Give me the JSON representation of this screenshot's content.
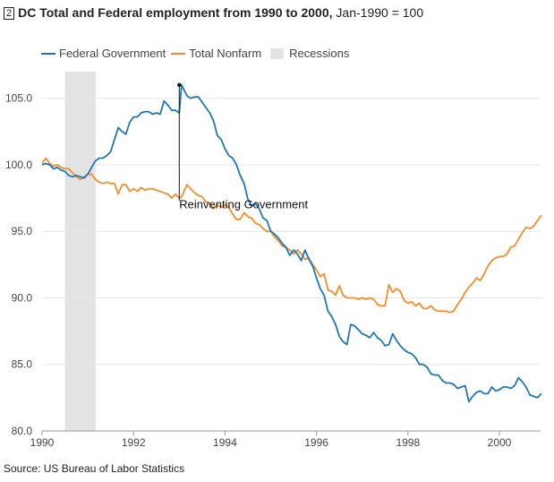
{
  "title": {
    "number": "2",
    "main": "DC Total and Federal employment from 1990 to 2000,",
    "suffix": "Jan-1990 = 100"
  },
  "source": "Source: US Bureau of Labor Statistics",
  "colors": {
    "federal": "#1f77b4",
    "nonfarm": "#f28e2b",
    "recession": "#e3e3e3",
    "grid": "#e6e6e6"
  },
  "chart_data": {
    "type": "line",
    "xlim": [
      1990,
      2000.9
    ],
    "ylim": [
      80,
      107
    ],
    "yticks": [
      80.0,
      85.0,
      90.0,
      95.0,
      100.0,
      105.0
    ],
    "ytick_labels": [
      "80.0",
      "85.0",
      "90.0",
      "95.0",
      "100.0",
      "105.0"
    ],
    "xticks": [
      1990,
      1992,
      1994,
      1996,
      1998,
      2000
    ],
    "xtick_labels": [
      "1990",
      "1992",
      "1994",
      "1996",
      "1998",
      "2000"
    ],
    "grid": true,
    "legend": {
      "placement": "top-left",
      "items": [
        "Federal Government",
        "Total Nonfarm",
        "Recessions"
      ]
    },
    "recessions": [
      [
        1990.5,
        1991.17
      ]
    ],
    "annotation": {
      "text": "Reinventing Government",
      "x": 1993.0,
      "y": 106.0
    },
    "series": [
      {
        "name": "Federal Government",
        "points": [
          [
            1990.0,
            100.0
          ],
          [
            1990.083,
            100.1
          ],
          [
            1990.167,
            100.0
          ],
          [
            1990.25,
            99.7
          ],
          [
            1990.333,
            99.8
          ],
          [
            1990.417,
            99.6
          ],
          [
            1990.5,
            99.5
          ],
          [
            1990.583,
            99.2
          ],
          [
            1990.667,
            99.1
          ],
          [
            1990.75,
            99.2
          ],
          [
            1990.833,
            99.1
          ],
          [
            1990.917,
            99.0
          ],
          [
            1991.0,
            99.3
          ],
          [
            1991.083,
            99.8
          ],
          [
            1991.167,
            100.3
          ],
          [
            1991.25,
            100.5
          ],
          [
            1991.333,
            100.5
          ],
          [
            1991.417,
            100.7
          ],
          [
            1991.5,
            101.0
          ],
          [
            1991.583,
            101.9
          ],
          [
            1991.667,
            102.8
          ],
          [
            1991.75,
            102.5
          ],
          [
            1991.833,
            102.3
          ],
          [
            1991.917,
            103.2
          ],
          [
            1992.0,
            103.6
          ],
          [
            1992.083,
            103.6
          ],
          [
            1992.167,
            103.9
          ],
          [
            1992.25,
            104.0
          ],
          [
            1992.333,
            104.0
          ],
          [
            1992.417,
            103.8
          ],
          [
            1992.5,
            103.9
          ],
          [
            1992.583,
            103.8
          ],
          [
            1992.667,
            104.8
          ],
          [
            1992.75,
            104.5
          ],
          [
            1992.833,
            104.1
          ],
          [
            1992.917,
            104.1
          ],
          [
            1993.0,
            103.9
          ],
          [
            1993.05,
            106.0
          ],
          [
            1993.167,
            105.2
          ],
          [
            1993.25,
            105.0
          ],
          [
            1993.333,
            105.1
          ],
          [
            1993.417,
            105.1
          ],
          [
            1993.5,
            104.7
          ],
          [
            1993.583,
            104.3
          ],
          [
            1993.667,
            103.9
          ],
          [
            1993.75,
            103.3
          ],
          [
            1993.833,
            102.2
          ],
          [
            1993.917,
            101.9
          ],
          [
            1994.0,
            101.2
          ],
          [
            1994.083,
            100.7
          ],
          [
            1994.167,
            100.5
          ],
          [
            1994.25,
            100.0
          ],
          [
            1994.333,
            99.2
          ],
          [
            1994.417,
            98.6
          ],
          [
            1994.5,
            97.4
          ],
          [
            1994.583,
            96.9
          ],
          [
            1994.667,
            97.1
          ],
          [
            1994.75,
            96.7
          ],
          [
            1994.833,
            96.0
          ],
          [
            1994.917,
            95.8
          ],
          [
            1995.0,
            95.0
          ],
          [
            1995.083,
            94.8
          ],
          [
            1995.167,
            94.5
          ],
          [
            1995.25,
            94.1
          ],
          [
            1995.333,
            93.8
          ],
          [
            1995.417,
            93.2
          ],
          [
            1995.5,
            93.6
          ],
          [
            1995.583,
            93.3
          ],
          [
            1995.667,
            92.8
          ],
          [
            1995.75,
            93.6
          ],
          [
            1995.833,
            92.9
          ],
          [
            1995.917,
            92.4
          ],
          [
            1996.0,
            91.5
          ],
          [
            1996.083,
            90.7
          ],
          [
            1996.167,
            90.2
          ],
          [
            1996.25,
            89.0
          ],
          [
            1996.333,
            88.6
          ],
          [
            1996.417,
            88.0
          ],
          [
            1996.5,
            87.1
          ],
          [
            1996.583,
            86.7
          ],
          [
            1996.667,
            86.5
          ],
          [
            1996.75,
            88.0
          ],
          [
            1996.833,
            87.9
          ],
          [
            1996.917,
            87.6
          ],
          [
            1997.0,
            87.3
          ],
          [
            1997.083,
            87.2
          ],
          [
            1997.167,
            87.0
          ],
          [
            1997.25,
            87.4
          ],
          [
            1997.333,
            87.0
          ],
          [
            1997.417,
            86.8
          ],
          [
            1997.5,
            86.4
          ],
          [
            1997.583,
            86.5
          ],
          [
            1997.667,
            87.3
          ],
          [
            1997.75,
            86.8
          ],
          [
            1997.833,
            86.4
          ],
          [
            1997.917,
            86.1
          ],
          [
            1998.0,
            85.9
          ],
          [
            1998.083,
            85.8
          ],
          [
            1998.167,
            85.5
          ],
          [
            1998.25,
            85.0
          ],
          [
            1998.333,
            85.0
          ],
          [
            1998.417,
            84.8
          ],
          [
            1998.5,
            84.3
          ],
          [
            1998.583,
            84.2
          ],
          [
            1998.667,
            84.2
          ],
          [
            1998.75,
            83.8
          ],
          [
            1998.833,
            83.6
          ],
          [
            1998.917,
            83.6
          ],
          [
            1999.0,
            83.5
          ],
          [
            1999.083,
            83.2
          ],
          [
            1999.167,
            83.3
          ],
          [
            1999.25,
            83.4
          ],
          [
            1999.333,
            82.2
          ],
          [
            1999.417,
            82.6
          ],
          [
            1999.5,
            82.9
          ],
          [
            1999.583,
            83.0
          ],
          [
            1999.667,
            82.8
          ],
          [
            1999.75,
            82.8
          ],
          [
            1999.833,
            83.3
          ],
          [
            1999.917,
            83.0
          ],
          [
            2000.0,
            83.1
          ],
          [
            2000.083,
            83.3
          ],
          [
            2000.167,
            83.3
          ],
          [
            2000.25,
            83.2
          ],
          [
            2000.333,
            83.4
          ],
          [
            2000.417,
            84.0
          ],
          [
            2000.5,
            83.7
          ],
          [
            2000.583,
            83.3
          ],
          [
            2000.667,
            82.7
          ],
          [
            2000.75,
            82.6
          ],
          [
            2000.833,
            82.5
          ],
          [
            2000.917,
            82.8
          ]
        ]
      },
      {
        "name": "Total Nonfarm",
        "points": [
          [
            1990.0,
            100.1
          ],
          [
            1990.083,
            100.5
          ],
          [
            1990.167,
            100.1
          ],
          [
            1990.25,
            99.9
          ],
          [
            1990.333,
            100.0
          ],
          [
            1990.417,
            99.8
          ],
          [
            1990.5,
            99.7
          ],
          [
            1990.583,
            99.7
          ],
          [
            1990.667,
            99.4
          ],
          [
            1990.75,
            99.1
          ],
          [
            1990.833,
            98.9
          ],
          [
            1990.917,
            99.1
          ],
          [
            1991.0,
            99.3
          ],
          [
            1991.083,
            99.3
          ],
          [
            1991.167,
            98.9
          ],
          [
            1991.25,
            98.7
          ],
          [
            1991.333,
            98.6
          ],
          [
            1991.417,
            98.7
          ],
          [
            1991.5,
            98.6
          ],
          [
            1991.583,
            98.6
          ],
          [
            1991.667,
            97.8
          ],
          [
            1991.75,
            98.5
          ],
          [
            1991.833,
            98.5
          ],
          [
            1991.917,
            98.0
          ],
          [
            1992.0,
            98.2
          ],
          [
            1992.083,
            98.0
          ],
          [
            1992.167,
            98.3
          ],
          [
            1992.25,
            98.1
          ],
          [
            1992.333,
            98.2
          ],
          [
            1992.417,
            98.2
          ],
          [
            1992.5,
            98.1
          ],
          [
            1992.583,
            98.0
          ],
          [
            1992.667,
            97.9
          ],
          [
            1992.75,
            97.8
          ],
          [
            1992.833,
            97.5
          ],
          [
            1992.917,
            97.8
          ],
          [
            1993.0,
            97.5
          ],
          [
            1993.05,
            97.6
          ],
          [
            1993.167,
            98.5
          ],
          [
            1993.25,
            98.2
          ],
          [
            1993.333,
            97.9
          ],
          [
            1993.417,
            97.7
          ],
          [
            1993.5,
            97.6
          ],
          [
            1993.583,
            97.2
          ],
          [
            1993.667,
            97.1
          ],
          [
            1993.75,
            96.7
          ],
          [
            1993.833,
            97.0
          ],
          [
            1993.917,
            96.8
          ],
          [
            1994.0,
            97.0
          ],
          [
            1994.083,
            96.8
          ],
          [
            1994.167,
            96.3
          ],
          [
            1994.25,
            95.9
          ],
          [
            1994.333,
            95.9
          ],
          [
            1994.417,
            96.4
          ],
          [
            1994.5,
            96.1
          ],
          [
            1994.583,
            96.0
          ],
          [
            1994.667,
            95.6
          ],
          [
            1994.75,
            95.5
          ],
          [
            1994.833,
            95.2
          ],
          [
            1994.917,
            95.0
          ],
          [
            1995.0,
            95.0
          ],
          [
            1995.083,
            94.6
          ],
          [
            1995.167,
            94.3
          ],
          [
            1995.25,
            93.9
          ],
          [
            1995.333,
            93.8
          ],
          [
            1995.417,
            93.6
          ],
          [
            1995.5,
            93.3
          ],
          [
            1995.583,
            93.6
          ],
          [
            1995.667,
            93.3
          ],
          [
            1995.75,
            92.9
          ],
          [
            1995.833,
            93.0
          ],
          [
            1995.917,
            92.5
          ],
          [
            1996.0,
            92.1
          ],
          [
            1996.083,
            91.6
          ],
          [
            1996.167,
            91.8
          ],
          [
            1996.25,
            90.6
          ],
          [
            1996.333,
            90.5
          ],
          [
            1996.417,
            90.2
          ],
          [
            1996.5,
            90.9
          ],
          [
            1996.583,
            90.2
          ],
          [
            1996.667,
            90.0
          ],
          [
            1996.75,
            90.0
          ],
          [
            1996.833,
            90.0
          ],
          [
            1996.917,
            89.9
          ],
          [
            1997.0,
            90.0
          ],
          [
            1997.083,
            89.9
          ],
          [
            1997.167,
            90.0
          ],
          [
            1997.25,
            89.9
          ],
          [
            1997.333,
            89.5
          ],
          [
            1997.417,
            89.4
          ],
          [
            1997.5,
            89.4
          ],
          [
            1997.583,
            91.0
          ],
          [
            1997.667,
            90.4
          ],
          [
            1997.75,
            90.7
          ],
          [
            1997.833,
            90.5
          ],
          [
            1997.917,
            89.8
          ],
          [
            1998.0,
            89.6
          ],
          [
            1998.083,
            89.7
          ],
          [
            1998.167,
            89.4
          ],
          [
            1998.25,
            89.6
          ],
          [
            1998.333,
            89.2
          ],
          [
            1998.417,
            89.2
          ],
          [
            1998.5,
            89.4
          ],
          [
            1998.583,
            89.1
          ],
          [
            1998.667,
            89.0
          ],
          [
            1998.75,
            89.0
          ],
          [
            1998.833,
            89.0
          ],
          [
            1998.917,
            88.9
          ],
          [
            1999.0,
            89.0
          ],
          [
            1999.083,
            89.5
          ],
          [
            1999.167,
            89.9
          ],
          [
            1999.25,
            90.4
          ],
          [
            1999.333,
            90.8
          ],
          [
            1999.417,
            91.1
          ],
          [
            1999.5,
            91.5
          ],
          [
            1999.583,
            91.3
          ],
          [
            1999.667,
            91.8
          ],
          [
            1999.75,
            92.4
          ],
          [
            1999.833,
            92.8
          ],
          [
            1999.917,
            93.0
          ],
          [
            2000.0,
            93.1
          ],
          [
            2000.083,
            93.1
          ],
          [
            2000.167,
            93.3
          ],
          [
            2000.25,
            93.8
          ],
          [
            2000.333,
            93.9
          ],
          [
            2000.417,
            94.4
          ],
          [
            2000.5,
            94.9
          ],
          [
            2000.583,
            95.3
          ],
          [
            2000.667,
            95.2
          ],
          [
            2000.75,
            95.4
          ],
          [
            2000.833,
            95.8
          ],
          [
            2000.917,
            96.2
          ]
        ]
      }
    ]
  }
}
